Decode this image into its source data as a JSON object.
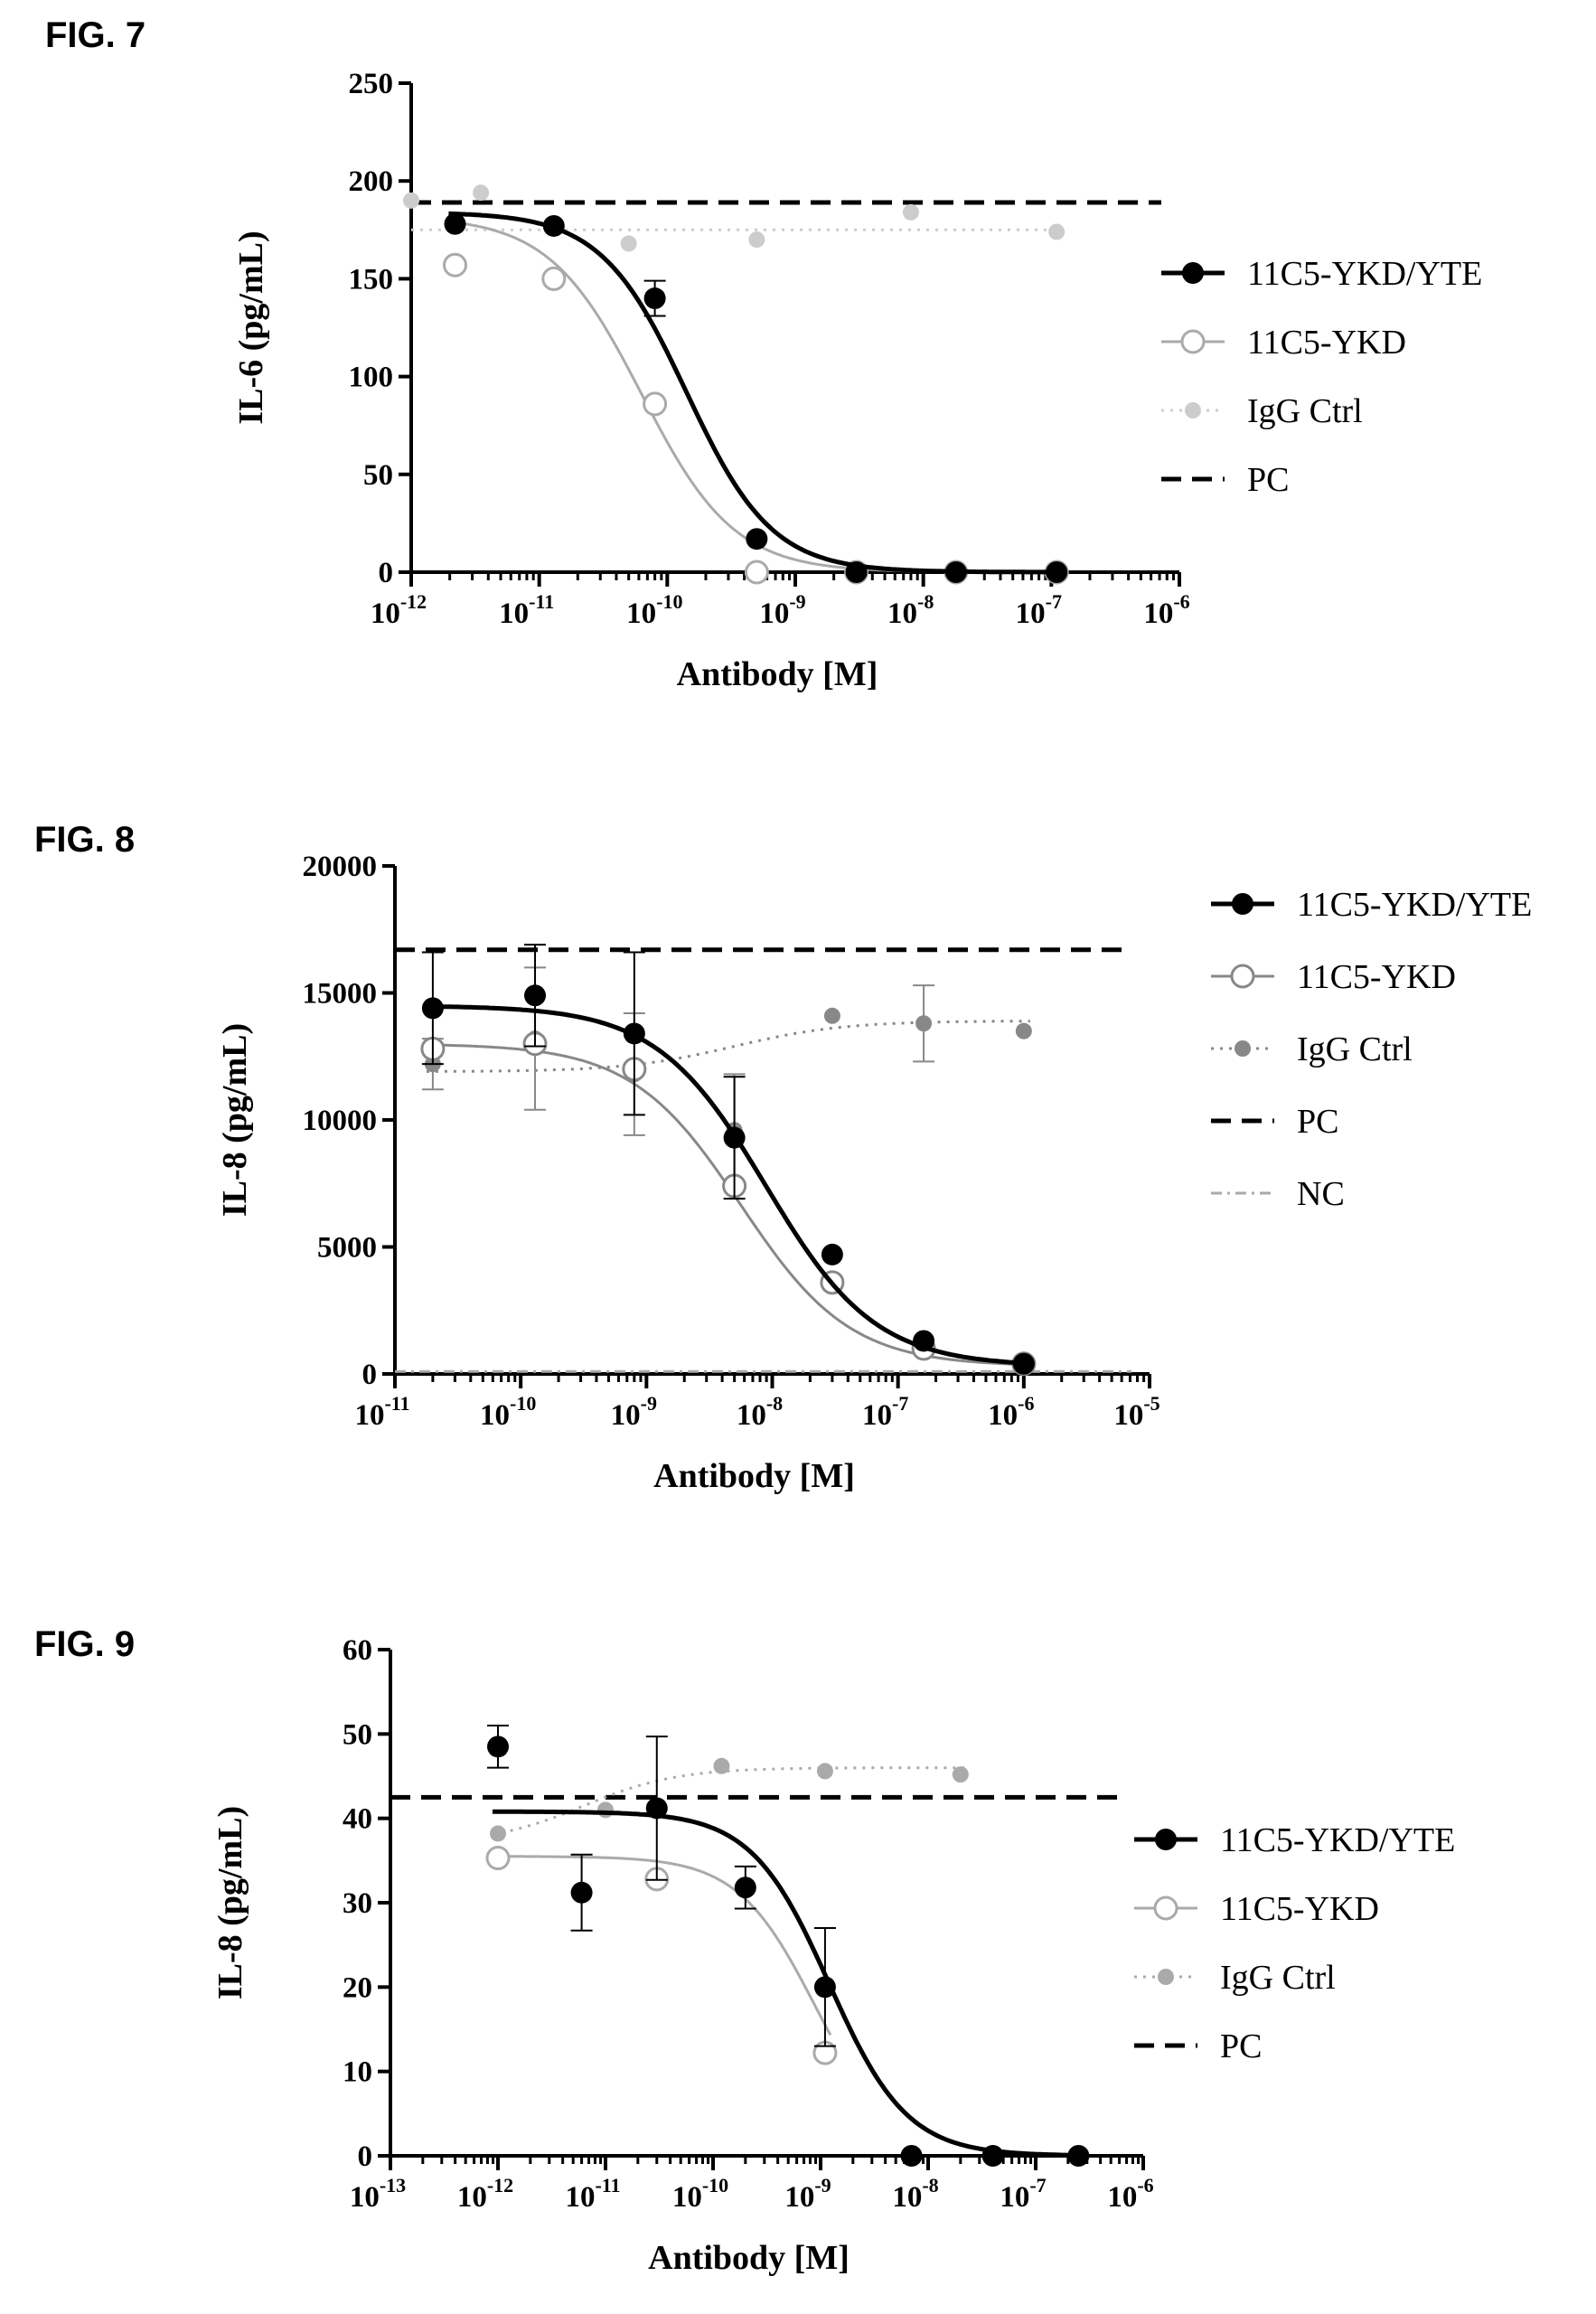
{
  "chart_data": [
    {
      "type": "scatter",
      "figure_label": "FIG. 7",
      "xlabel": "Antibody [M]",
      "ylabel": "IL-6 (pg/mL)",
      "xscale": "log",
      "xlim": [
        1e-12,
        1e-06
      ],
      "ylim": [
        0,
        250
      ],
      "yticks": [
        "0",
        "50",
        "100",
        "150",
        "200",
        "250"
      ],
      "xticks": [
        {
          "base": "10",
          "exp": "-12"
        },
        {
          "base": "10",
          "exp": "-11"
        },
        {
          "base": "10",
          "exp": "-10"
        },
        {
          "base": "10",
          "exp": "-9"
        },
        {
          "base": "10",
          "exp": "-8"
        },
        {
          "base": "10",
          "exp": "-7"
        },
        {
          "base": "10",
          "exp": "-6"
        }
      ],
      "legend_position": "right",
      "series": [
        {
          "name": "11C5-YKD/YTE",
          "color": "#000000",
          "marker": "filled-circle",
          "line": "solid",
          "x": [
            2.2e-12,
            1.3e-11,
            8e-11,
            5e-10,
            3e-09,
            1.8e-08,
            1.1e-07
          ],
          "y": [
            178,
            177,
            140,
            17,
            0,
            0,
            0
          ],
          "yerr": [
            0,
            0,
            9,
            0,
            0,
            0,
            0
          ],
          "fit": {
            "top": 184,
            "bottom": 0,
            "logec50": -9.85,
            "hill": 1.3
          }
        },
        {
          "name": "11C5-YKD",
          "color": "#aaaaaa",
          "marker": "open-circle",
          "line": "solid",
          "x": [
            2.2e-12,
            1.3e-11,
            8e-11,
            5e-10,
            3e-09,
            1.8e-08,
            1.1e-07
          ],
          "y": [
            157,
            150,
            86,
            0,
            0,
            0,
            0
          ],
          "fit": {
            "top": 182,
            "bottom": 0,
            "logec50": -10.2,
            "hill": 1.2
          }
        },
        {
          "name": "IgG Ctrl",
          "color": "#cccccc",
          "marker": "small-filled-circle",
          "line": "dotted",
          "x": [
            1e-12,
            3.5e-12,
            5e-11,
            5e-10,
            8e-09,
            1.1e-07
          ],
          "y": [
            190,
            194,
            168,
            170,
            184,
            174
          ],
          "fit": {
            "flat": 175
          }
        },
        {
          "name": "PC",
          "color": "#000000",
          "marker": "none",
          "line": "dashed",
          "hline": 189
        }
      ]
    },
    {
      "type": "scatter",
      "figure_label": "FIG. 8",
      "xlabel": "Antibody [M]",
      "ylabel": "IL-8 (pg/mL)",
      "xscale": "log",
      "xlim": [
        1e-11,
        1e-05
      ],
      "ylim": [
        0,
        20000
      ],
      "yticks": [
        "0",
        "5000",
        "10000",
        "15000",
        "20000"
      ],
      "xticks": [
        {
          "base": "10",
          "exp": "-11"
        },
        {
          "base": "10",
          "exp": "-10"
        },
        {
          "base": "10",
          "exp": "-9"
        },
        {
          "base": "10",
          "exp": "-8"
        },
        {
          "base": "10",
          "exp": "-7"
        },
        {
          "base": "10",
          "exp": "-6"
        },
        {
          "base": "10",
          "exp": "-5"
        }
      ],
      "legend_position": "right",
      "series": [
        {
          "name": "11C5-YKD/YTE",
          "color": "#000000",
          "marker": "filled-circle",
          "line": "solid",
          "x": [
            2e-11,
            1.3e-10,
            8e-10,
            5e-09,
            3e-08,
            1.6e-07,
            1e-06
          ],
          "y": [
            14400,
            14900,
            13400,
            9300,
            4700,
            1300,
            400
          ],
          "yerr": [
            2200,
            2000,
            3200,
            2400,
            0,
            0,
            0
          ],
          "fit": {
            "top": 14500,
            "bottom": 300,
            "logec50": -8.05,
            "hill": 1.0
          }
        },
        {
          "name": "11C5-YKD",
          "color": "#888888",
          "marker": "open-circle",
          "line": "solid",
          "x": [
            2e-11,
            1.3e-10,
            8e-10,
            5e-09,
            3e-08,
            1.6e-07,
            1e-06
          ],
          "y": [
            12800,
            13000,
            12000,
            7400,
            3600,
            1000,
            400
          ],
          "fit": {
            "top": 13000,
            "bottom": 300,
            "logec50": -8.25,
            "hill": 1.0
          }
        },
        {
          "name": "IgG Ctrl",
          "color": "#888888",
          "marker": "small-filled-circle",
          "line": "dotted",
          "x": [
            2e-11,
            1.3e-10,
            8e-10,
            5e-09,
            3e-08,
            1.6e-07,
            1e-06
          ],
          "y": [
            12200,
            13200,
            11800,
            9600,
            14100,
            13800,
            13500
          ],
          "yerr": [
            1000,
            2800,
            2400,
            2200,
            0,
            1500,
            0
          ],
          "fit": {
            "low": 11900,
            "high": 13900,
            "logec50": -8.3
          }
        },
        {
          "name": "PC",
          "color": "#000000",
          "marker": "none",
          "line": "dashed",
          "hline": 16700
        },
        {
          "name": "NC",
          "color": "#aaaaaa",
          "marker": "none",
          "line": "dash-dot",
          "hline": 100
        }
      ]
    },
    {
      "type": "scatter",
      "figure_label": "FIG. 9",
      "xlabel": "Antibody [M]",
      "ylabel": "IL-8 (pg/mL)",
      "xscale": "log",
      "xlim": [
        1e-13,
        1e-06
      ],
      "ylim": [
        0,
        60
      ],
      "yticks": [
        "0",
        "10",
        "20",
        "30",
        "40",
        "50",
        "60"
      ],
      "xticks": [
        {
          "base": "10",
          "exp": "-13"
        },
        {
          "base": "10",
          "exp": "-12"
        },
        {
          "base": "10",
          "exp": "-11"
        },
        {
          "base": "10",
          "exp": "-10"
        },
        {
          "base": "10",
          "exp": "-9"
        },
        {
          "base": "10",
          "exp": "-8"
        },
        {
          "base": "10",
          "exp": "-7"
        },
        {
          "base": "10",
          "exp": "-6"
        }
      ],
      "legend_position": "right",
      "series": [
        {
          "name": "11C5-YKD/YTE",
          "color": "#000000",
          "marker": "filled-circle",
          "line": "solid",
          "x": [
            1e-12,
            6e-12,
            3e-11,
            2e-10,
            1.1e-09,
            7e-09,
            4e-08,
            2.5e-07
          ],
          "y": [
            48.5,
            31.2,
            41.2,
            31.8,
            20.0,
            0,
            0,
            0
          ],
          "yerr": [
            2.5,
            4.5,
            8.5,
            2.5,
            7.0,
            0,
            0,
            0
          ],
          "fit": {
            "top": 40.8,
            "bottom": 0,
            "logec50": -8.92,
            "hill": 1.2
          }
        },
        {
          "name": "11C5-YKD",
          "color": "#aaaaaa",
          "marker": "open-circle",
          "line": "solid",
          "x": [
            1e-12,
            3e-11,
            1.1e-09
          ],
          "y": [
            35.3,
            32.8,
            12.2
          ],
          "fit": {
            "top": 35.5,
            "bottom": 0,
            "logec50": -9.05,
            "hill": 1.2
          }
        },
        {
          "name": "IgG Ctrl",
          "color": "#aaaaaa",
          "marker": "small-filled-circle",
          "line": "dotted",
          "x": [
            1e-12,
            1e-11,
            1.2e-10,
            1.1e-09,
            2e-08
          ],
          "y": [
            38.2,
            41.0,
            46.2,
            45.6,
            45.2
          ],
          "fit": {
            "low": 37.0,
            "high": 46.0,
            "logec50": -11.2
          }
        },
        {
          "name": "PC",
          "color": "#000000",
          "marker": "none",
          "line": "dashed",
          "hline": 42.5
        }
      ]
    }
  ]
}
